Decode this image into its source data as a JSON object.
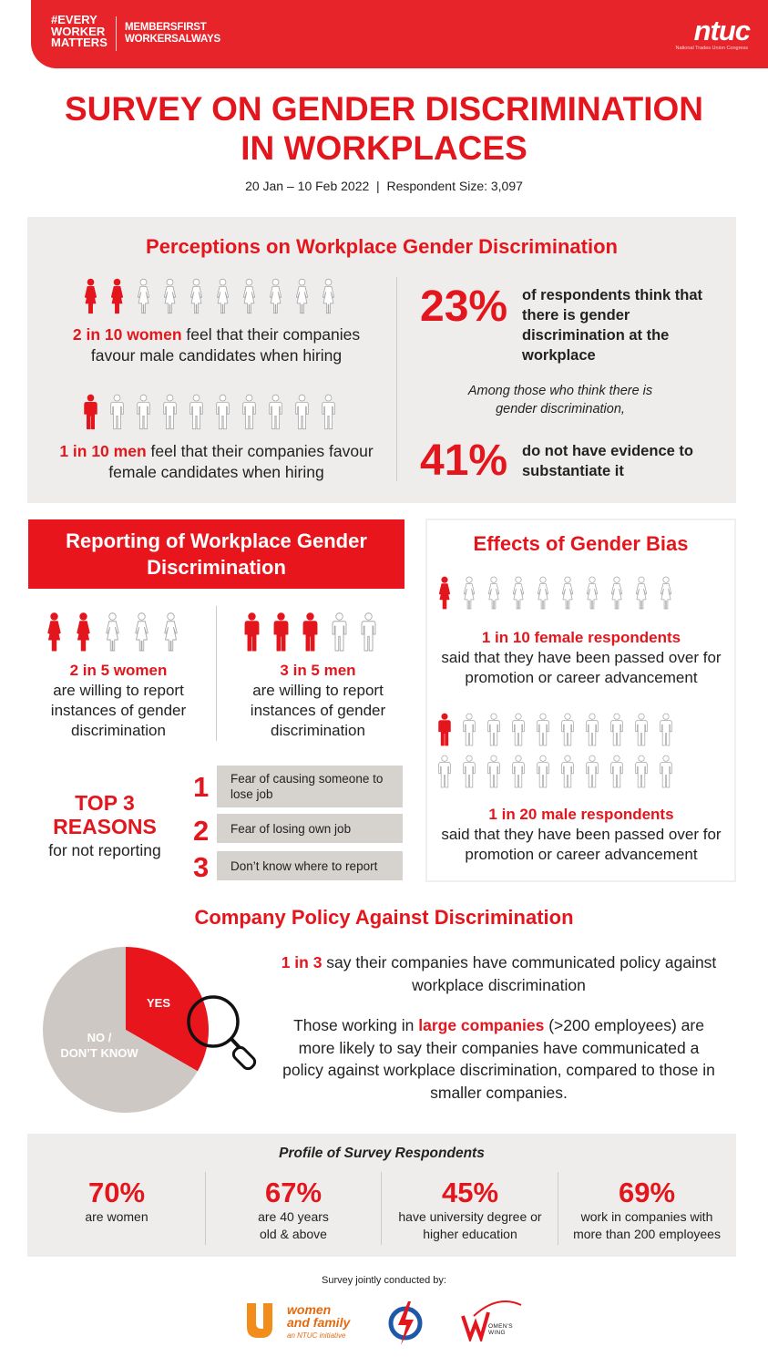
{
  "header": {
    "hashtag": [
      "#EVERY",
      "WORKER",
      "MATTERS"
    ],
    "slogan": [
      "MEMBERSFIRST",
      "WORKERSALWAYS"
    ],
    "logo_text": "ntuc",
    "logo_subtitle": "National Trades Union Congress"
  },
  "title_lines": [
    "SURVEY ON GENDER DISCRIMINATION",
    "IN WORKPLACES"
  ],
  "subtitle": "20 Jan – 10 Feb 2022  |  Respondent Size: 3,097",
  "perceptions": {
    "title": "Perceptions on Workplace Gender Discrimination",
    "women": {
      "highlight": "2 in 10 women",
      "text": " feel that their companies favour male candidates when hiring",
      "filled": 2,
      "total": 10
    },
    "men": {
      "highlight": "1 in 10 men",
      "text": " feel that their companies favour female candidates when hiring",
      "filled": 1,
      "total": 10
    },
    "stat1": {
      "value": "23%",
      "text": "of respondents think that there is gender discrimination at the workplace"
    },
    "among": "Among those who think there is gender discrimination,",
    "stat2": {
      "value": "41%",
      "text": "do not have evidence to substantiate it"
    }
  },
  "reporting": {
    "title": "Reporting of Workplace Gender Discrimination",
    "women": {
      "highlight": "2 in 5 women",
      "text": "are willing to report instances of gender discrimination",
      "filled": 2,
      "total": 5
    },
    "men": {
      "highlight": "3 in 5 men",
      "text": "are willing to report instances of gender discrimination",
      "filled": 3,
      "total": 5
    },
    "reasons_heading": "TOP 3 REASONS",
    "reasons_sub": "for not reporting",
    "reasons": [
      {
        "rank": "1",
        "text": "Fear of causing someone to lose job"
      },
      {
        "rank": "2",
        "text": "Fear of losing own job"
      },
      {
        "rank": "3",
        "text": "Don’t know where to report"
      }
    ]
  },
  "effects": {
    "title": "Effects of Gender Bias",
    "female": {
      "highlight": "1 in 10 female respondents",
      "text": "said that they have been passed over for promotion or career advancement",
      "filled": 1,
      "total": 10
    },
    "male": {
      "highlight": "1 in 20 male respondents",
      "text": "said that they have been passed over for promotion or career advancement",
      "filled": 1,
      "total": 20
    }
  },
  "policy": {
    "title": "Company Policy Against Discrimination",
    "line1_highlight": "1 in 3",
    "line1_text": " say their companies have communicated policy against workplace discrimination",
    "line2_pre": "Those working in ",
    "line2_highlight": "large companies",
    "line2_post": " (>200 employees) are more likely to say their companies have communicated a policy against workplace discrimination, compared to those in smaller companies.",
    "chart_data": {
      "type": "pie",
      "labels": [
        "YES",
        "NO / DON’T KNOW"
      ],
      "values": [
        0.333,
        0.667
      ],
      "colors": [
        "#e8151d",
        "#cdc8c3"
      ]
    }
  },
  "profile": {
    "title": "Profile of Survey Respondents",
    "stats": [
      {
        "value": "70%",
        "label": "are women"
      },
      {
        "value": "67%",
        "label": "are 40 years old & above"
      },
      {
        "value": "45%",
        "label": "have university degree or higher education"
      },
      {
        "value": "69%",
        "label": "work in companies with more than 200 employees"
      }
    ]
  },
  "jointly": "Survey jointly conducted by:",
  "logos": {
    "wf_line1": "women",
    "wf_line2": "and family",
    "wf_line3": "an NTUC initiative",
    "ww_text": "OMEN'S WING"
  },
  "colors": {
    "accent": "#e4161d",
    "panel": "#efedeb",
    "icon_empty": "#a7a7a7"
  }
}
